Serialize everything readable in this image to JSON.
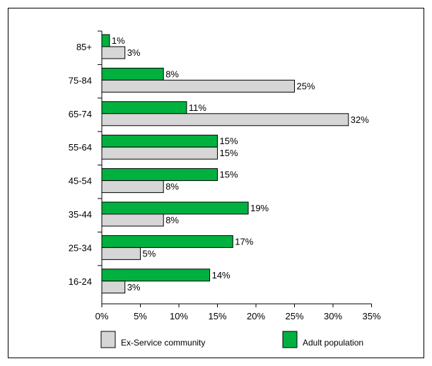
{
  "chart_data": {
    "type": "bar",
    "orientation": "horizontal",
    "categories": [
      "85+",
      "75-84",
      "65-74",
      "55-64",
      "45-54",
      "35-44",
      "25-34",
      "16-24"
    ],
    "series": [
      {
        "name": "Adult population",
        "color": "#00b140",
        "values": [
          1,
          8,
          11,
          15,
          15,
          19,
          17,
          14
        ],
        "labels": [
          "1%",
          "8%",
          "11%",
          "15%",
          "15%",
          "19%",
          "17%",
          "14%"
        ]
      },
      {
        "name": "Ex-Service community",
        "color": "#d6d6d6",
        "values": [
          3,
          25,
          32,
          15,
          8,
          8,
          5,
          3
        ],
        "labels": [
          "3%",
          "25%",
          "32%",
          "15%",
          "8%",
          "8%",
          "5%",
          "3%"
        ]
      }
    ],
    "xlim": [
      0,
      35
    ],
    "xticks": [
      "0%",
      "5%",
      "10%",
      "15%",
      "20%",
      "25%",
      "30%",
      "35%"
    ],
    "grid": false,
    "legend_position": "bottom",
    "legend": [
      {
        "label": "Ex-Service community",
        "color": "#d6d6d6"
      },
      {
        "label": "Adult population",
        "color": "#00b140"
      }
    ]
  }
}
